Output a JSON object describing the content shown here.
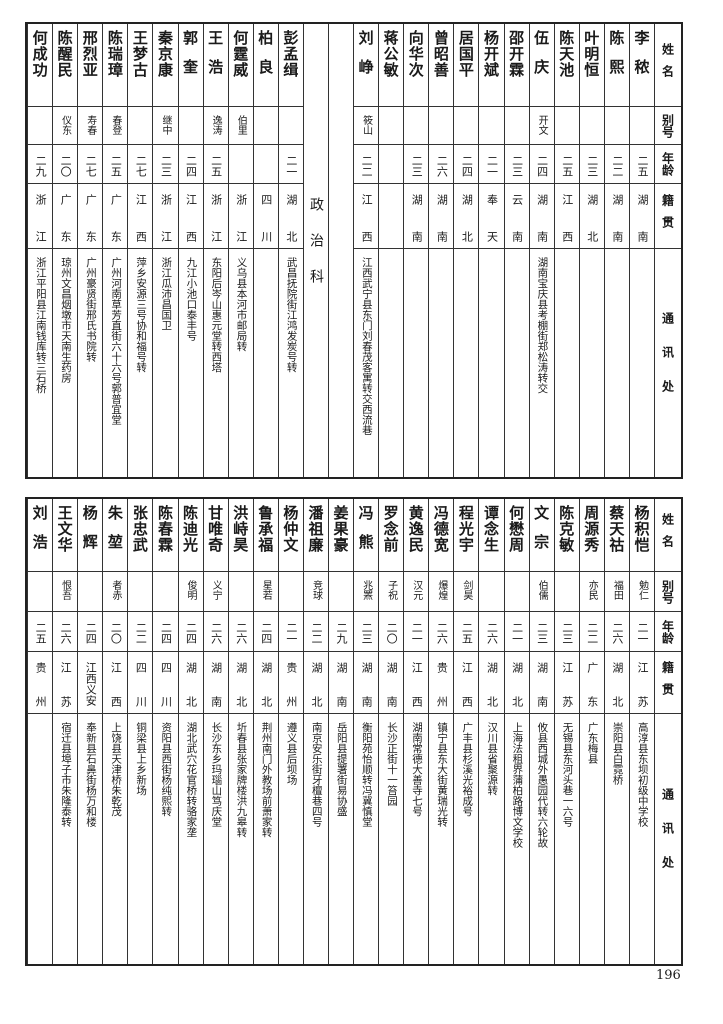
{
  "headers": {
    "name": "姓名",
    "alias": "别号",
    "age": "年龄",
    "native": "籍贯",
    "address": "通讯处"
  },
  "top_table": {
    "right_group": [
      {
        "name": "李秾",
        "alias": "",
        "age": "二五",
        "native": "湖南",
        "address": ""
      },
      {
        "name": "陈熙",
        "alias": "",
        "age": "二二",
        "native": "湖南",
        "address": ""
      },
      {
        "name": "叶明恒",
        "alias": "",
        "age": "二三",
        "native": "湖北",
        "address": ""
      },
      {
        "name": "陈天池",
        "alias": "",
        "age": "二五",
        "native": "江西",
        "address": ""
      },
      {
        "name": "伍庆",
        "alias": "开文",
        "age": "二四",
        "native": "湖南",
        "address": "湖南宝庆县考棚街郑松涛转交"
      },
      {
        "name": "邵开霖",
        "alias": "",
        "age": "二三",
        "native": "云南",
        "address": ""
      },
      {
        "name": "杨开斌",
        "alias": "",
        "age": "二一",
        "native": "奉天",
        "address": ""
      },
      {
        "name": "居国平",
        "alias": "",
        "age": "二四",
        "native": "湖北",
        "address": ""
      },
      {
        "name": "曾昭善",
        "alias": "",
        "age": "二六",
        "native": "湖南",
        "address": ""
      },
      {
        "name": "向华次",
        "alias": "",
        "age": "二三",
        "native": "湖南",
        "address": ""
      },
      {
        "name": "蒋公敏",
        "alias": "",
        "age": "",
        "native": "",
        "address": ""
      },
      {
        "name": "刘峥",
        "alias": "筱山",
        "age": "二二",
        "native": "江西",
        "address": "江西武宁县东门刘春茂客寓转交西流巷"
      }
    ],
    "section_label": "政治科",
    "left_group": [
      {
        "name": "彭孟缉",
        "alias": "",
        "age": "二一",
        "native": "湖北",
        "address": "武昌抚院街江鸿发炭号转"
      },
      {
        "name": "柏良",
        "alias": "",
        "age": "",
        "native": "四川",
        "address": ""
      },
      {
        "name": "何霆威",
        "alias": "伯里",
        "age": "",
        "native": "浙江",
        "address": "义乌县本河市邮局转"
      },
      {
        "name": "王浩",
        "alias": "逸涛",
        "age": "二五",
        "native": "浙江",
        "address": "东阳后岑山惠元堂转西塔"
      },
      {
        "name": "郭奎",
        "alias": "",
        "age": "二四",
        "native": "江西",
        "address": "九江小池口泰丰号"
      },
      {
        "name": "秦京康",
        "alias": "继中",
        "age": "二三",
        "native": "浙江",
        "address": "浙江瓜沛昌国卫"
      },
      {
        "name": "王梦古",
        "alias": "",
        "age": "二七",
        "native": "江西",
        "address": "萍乡安源三号协和福号转"
      },
      {
        "name": "陈瑞璋",
        "alias": "春登",
        "age": "二五",
        "native": "广东",
        "address": "广州河南草芳直街六十六号郭普宜堂"
      },
      {
        "name": "邢烈亚",
        "alias": "寿春",
        "age": "二七",
        "native": "广东",
        "address": "广州豪贤街邢氏书院转"
      },
      {
        "name": "陈醒民",
        "alias": "仪东",
        "age": "二〇",
        "native": "广东",
        "address": "琼州文昌烟墩市天南生药房"
      },
      {
        "name": "何成功",
        "alias": "",
        "age": "二九",
        "native": "浙江",
        "address": "浙江平阳县江南钱库转三石桥"
      }
    ]
  },
  "bottom_table": [
    {
      "name": "杨积恺",
      "alias": "勉仁",
      "age": "二一",
      "native": "江苏",
      "address": "高淳县东坝初级中学校"
    },
    {
      "name": "蔡天祜",
      "alias": "福田",
      "age": "二六",
      "native": "湖北",
      "address": "崇阳县白霓桥"
    },
    {
      "name": "周源秀",
      "alias": "亦民",
      "age": "二二",
      "native": "广东",
      "address": "广东梅县"
    },
    {
      "name": "陈克敏",
      "alias": "",
      "age": "二三",
      "native": "江苏",
      "address": "无锡县东河头巷一六号"
    },
    {
      "name": "文宗",
      "alias": "伯儒",
      "age": "二三",
      "native": "湖南",
      "address": "攸县西城外愚园代转六轮故"
    },
    {
      "name": "何懋周",
      "alias": "",
      "age": "二一",
      "native": "湖北",
      "address": "上海法租界蒲柏路博文学校"
    },
    {
      "name": "谭念生",
      "alias": "",
      "age": "二六",
      "native": "湖北",
      "address": "汉川县省聚源转"
    },
    {
      "name": "程光宇",
      "alias": "剑昊",
      "age": "二五",
      "native": "江西",
      "address": "广丰县杉溪光裕成号"
    },
    {
      "name": "冯德宽",
      "alias": "爆煌",
      "age": "二六",
      "native": "贵州",
      "address": "镇宁县东大街黄瑞光转"
    },
    {
      "name": "黄逸民",
      "alias": "汉元",
      "age": "二一",
      "native": "江西",
      "address": "湖南常德大善寺七号"
    },
    {
      "name": "罗念前",
      "alias": "子祝",
      "age": "二〇",
      "native": "湖南",
      "address": "长沙正街十一笞园"
    },
    {
      "name": "冯熊",
      "alias": "兆罴",
      "age": "二三",
      "native": "湖南",
      "address": "衡阳苑怡顺转冯冀慎堂"
    },
    {
      "name": "姜果豪",
      "alias": "",
      "age": "二九",
      "native": "湖南",
      "address": "岳阳县提署街易协盛"
    },
    {
      "name": "潘祖廉",
      "alias": "竞球",
      "age": "二二",
      "native": "湖北",
      "address": "南京安乐街牙檀巷四号"
    },
    {
      "name": "杨仲文",
      "alias": "",
      "age": "二一",
      "native": "贵州",
      "address": "遵义县后坝场"
    },
    {
      "name": "鲁承福",
      "alias": "星若",
      "age": "二四",
      "native": "湖北",
      "address": "荆州南门外教场前萧家转"
    },
    {
      "name": "洪峙昊",
      "alias": "",
      "age": "二六",
      "native": "湖北",
      "address": "圻春县张家牌楼洪九皋转"
    },
    {
      "name": "甘唯奇",
      "alias": "义宁",
      "age": "二六",
      "native": "湖南",
      "address": "长沙东乡玛瑙山笃庆堂"
    },
    {
      "name": "陈迪光",
      "alias": "俊明",
      "age": "二四",
      "native": "湖北",
      "address": "湖北武穴花官桥转骆家垄"
    },
    {
      "name": "陈春霖",
      "alias": "",
      "age": "二四",
      "native": "四川",
      "address": "资阳县西街杨纯熙转"
    },
    {
      "name": "张忠武",
      "alias": "",
      "age": "二二",
      "native": "四川",
      "address": "铜梁县上乡新场"
    },
    {
      "name": "朱堃",
      "alias": "者赤",
      "age": "二〇",
      "native": "江西",
      "address": "上饶县天津桥朱乾茂"
    },
    {
      "name": "杨辉",
      "alias": "",
      "age": "二四",
      "native": "江西义安",
      "address": "奉新县石鼻街杨万和楼"
    },
    {
      "name": "王文华",
      "alias": "恨吾",
      "age": "二六",
      "native": "江苏",
      "address": "宿迁县埠子市朱隆泰转"
    },
    {
      "name": "刘浩",
      "alias": "",
      "age": "二五",
      "native": "贵州",
      "address": ""
    }
  ],
  "page_number": "196"
}
